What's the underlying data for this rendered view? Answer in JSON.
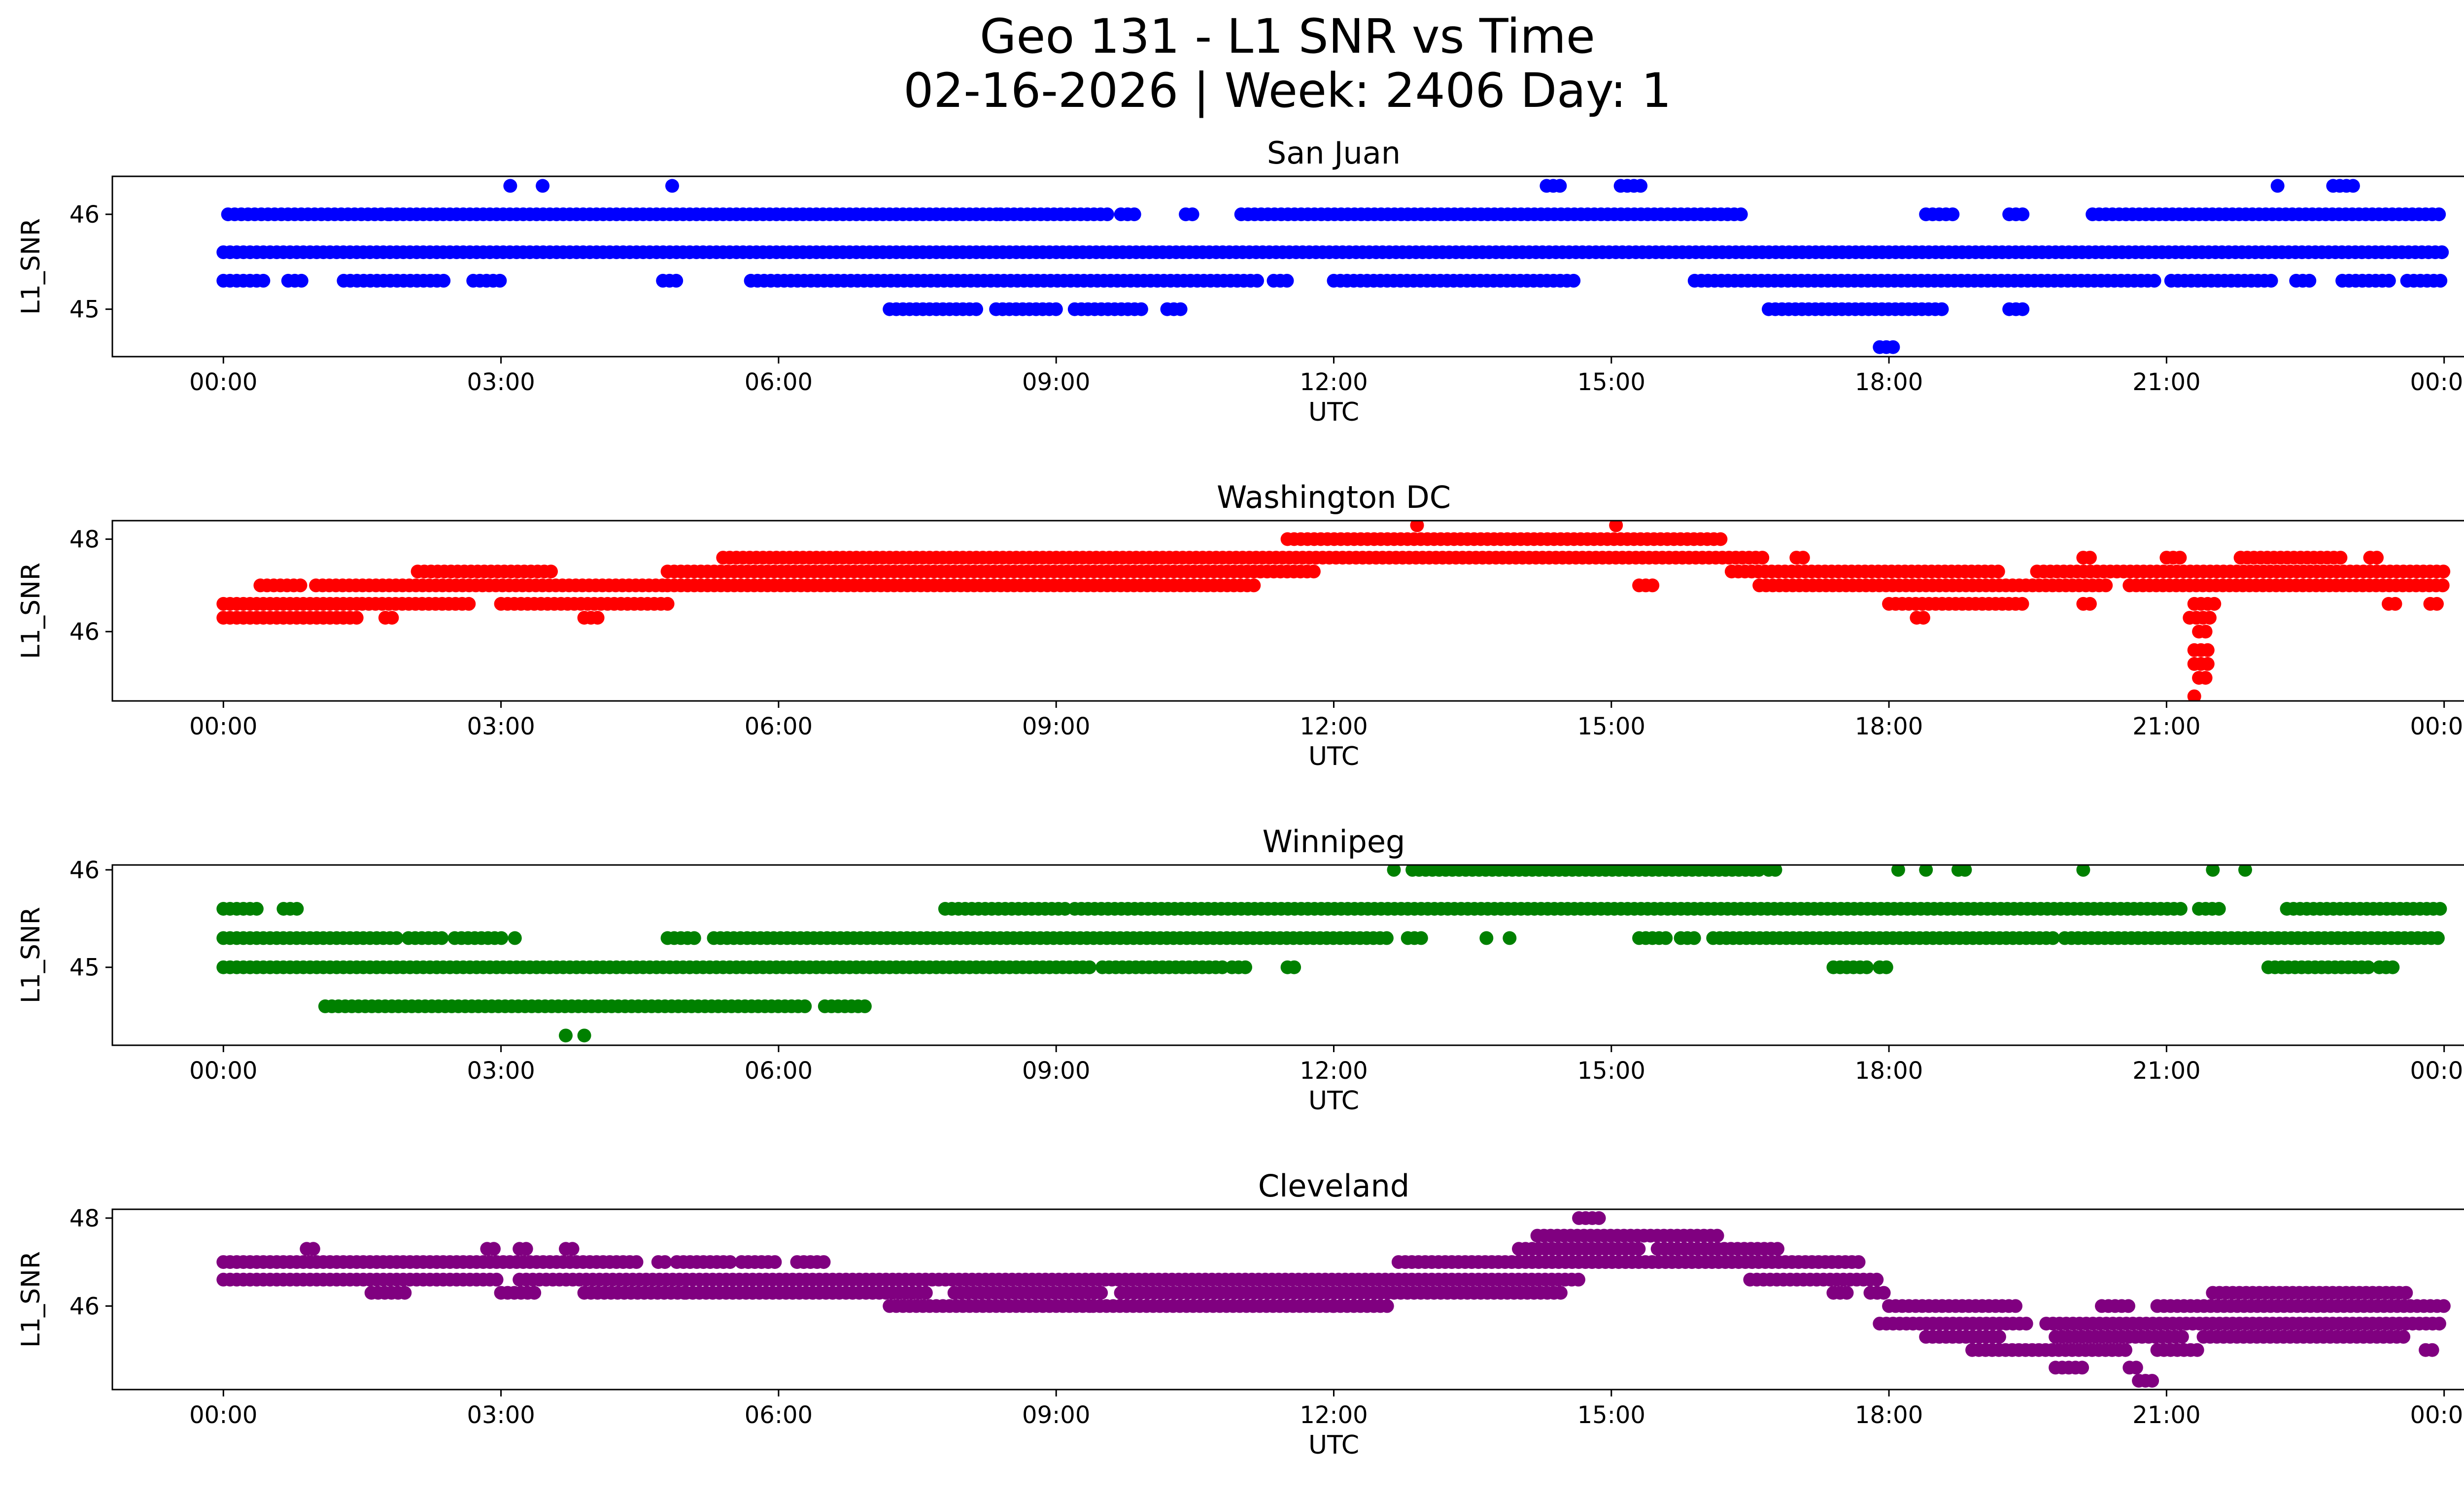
{
  "figure": {
    "title_line1": "Geo 131 - L1 SNR vs Time",
    "title_line2": "02-16-2026 | Week: 2406 Day: 1"
  },
  "chart_data": [
    {
      "type": "scatter",
      "title": "San Juan",
      "xlabel": "UTC",
      "ylabel": "L1_SNR",
      "color": "#0000ff",
      "x_ticks": [
        "00:00",
        "03:00",
        "06:00",
        "09:00",
        "12:00",
        "15:00",
        "18:00",
        "21:00",
        "00:00"
      ],
      "y_ticks": [
        45,
        46
      ],
      "xlim_hours": [
        -1.2,
        25.2
      ],
      "ylim": [
        44.5,
        46.4
      ],
      "levels": [
        {
          "y": 46.3,
          "runs": [
            [
              3.1,
              3.15
            ],
            [
              3.45,
              3.5
            ],
            [
              4.85,
              4.9
            ],
            [
              14.3,
              14.5
            ],
            [
              15.1,
              15.35
            ],
            [
              22.2,
              22.25
            ],
            [
              22.8,
              23.05
            ]
          ]
        },
        {
          "y": 46.0,
          "runs": [
            [
              0.05,
              1.8
            ],
            [
              1.8,
              8.4
            ],
            [
              8.4,
              9.6
            ],
            [
              9.7,
              9.85
            ],
            [
              10.4,
              10.5
            ],
            [
              11.0,
              16.4
            ],
            [
              18.4,
              18.75
            ],
            [
              19.3,
              19.5
            ],
            [
              20.2,
              24.0
            ]
          ]
        },
        {
          "y": 45.6,
          "runs": [
            [
              0.0,
              24.0
            ]
          ]
        },
        {
          "y": 45.3,
          "runs": [
            [
              0.0,
              0.45
            ],
            [
              0.7,
              0.9
            ],
            [
              1.3,
              2.4
            ],
            [
              2.7,
              3.05
            ],
            [
              4.75,
              4.95
            ],
            [
              5.7,
              11.2
            ],
            [
              11.35,
              11.55
            ],
            [
              12.0,
              14.6
            ],
            [
              15.9,
              20.9
            ],
            [
              21.05,
              22.2
            ],
            [
              22.4,
              22.6
            ],
            [
              22.9,
              23.45
            ],
            [
              23.6,
              24.0
            ]
          ]
        },
        {
          "y": 45.0,
          "runs": [
            [
              7.2,
              8.15
            ],
            [
              8.35,
              9.05
            ],
            [
              9.2,
              9.95
            ],
            [
              10.2,
              10.35
            ],
            [
              16.7,
              18.6
            ],
            [
              19.3,
              19.45
            ]
          ]
        },
        {
          "y": 44.6,
          "runs": [
            [
              17.9,
              18.1
            ]
          ]
        }
      ]
    },
    {
      "type": "scatter",
      "title": "Washington DC",
      "xlabel": "UTC",
      "ylabel": "L1_SNR",
      "color": "#ff0000",
      "x_ticks": [
        "00:00",
        "03:00",
        "06:00",
        "09:00",
        "12:00",
        "15:00",
        "18:00",
        "21:00",
        "00:00"
      ],
      "y_ticks": [
        46,
        48
      ],
      "xlim_hours": [
        -1.2,
        25.2
      ],
      "ylim": [
        44.5,
        48.4
      ],
      "levels": [
        {
          "y": 48.3,
          "runs": [
            [
              12.9,
              12.95
            ],
            [
              15.05,
              15.1
            ]
          ]
        },
        {
          "y": 48.0,
          "runs": [
            [
              11.5,
              16.2
            ]
          ]
        },
        {
          "y": 47.6,
          "runs": [
            [
              5.4,
              16.7
            ],
            [
              17.0,
              17.1
            ],
            [
              20.1,
              20.2
            ],
            [
              21.0,
              21.2
            ],
            [
              21.8,
              22.9
            ],
            [
              23.2,
              23.3
            ]
          ]
        },
        {
          "y": 47.3,
          "runs": [
            [
              2.1,
              3.6
            ],
            [
              4.8,
              11.8
            ],
            [
              16.3,
              19.2
            ],
            [
              19.6,
              24.0
            ]
          ]
        },
        {
          "y": 47.0,
          "runs": [
            [
              0.4,
              0.9
            ],
            [
              1.0,
              4.8
            ],
            [
              4.8,
              11.2
            ],
            [
              15.3,
              15.5
            ],
            [
              16.6,
              20.4
            ],
            [
              20.6,
              24.0
            ]
          ]
        },
        {
          "y": 46.6,
          "runs": [
            [
              0.0,
              1.5
            ],
            [
              1.5,
              2.7
            ],
            [
              3.0,
              4.8
            ],
            [
              18.0,
              19.5
            ],
            [
              20.1,
              20.2
            ],
            [
              21.3,
              21.55
            ],
            [
              23.4,
              23.5
            ],
            [
              23.85,
              23.95
            ]
          ]
        },
        {
          "y": 46.3,
          "runs": [
            [
              0.0,
              1.5
            ],
            [
              1.75,
              1.85
            ],
            [
              3.9,
              4.1
            ],
            [
              18.3,
              18.4
            ],
            [
              21.25,
              21.5
            ]
          ]
        },
        {
          "y": 46.0,
          "runs": [
            [
              21.35,
              21.45
            ]
          ]
        },
        {
          "y": 45.6,
          "runs": [
            [
              21.3,
              21.45
            ]
          ]
        },
        {
          "y": 45.3,
          "runs": [
            [
              21.3,
              21.45
            ]
          ]
        },
        {
          "y": 45.0,
          "runs": [
            [
              21.35,
              21.45
            ]
          ]
        },
        {
          "y": 44.6,
          "runs": [
            [
              21.3,
              21.35
            ]
          ]
        }
      ]
    },
    {
      "type": "scatter",
      "title": "Winnipeg",
      "xlabel": "UTC",
      "ylabel": "L1_SNR",
      "color": "#008000",
      "x_ticks": [
        "00:00",
        "03:00",
        "06:00",
        "09:00",
        "12:00",
        "15:00",
        "18:00",
        "21:00",
        "00:00"
      ],
      "y_ticks": [
        45,
        46
      ],
      "xlim_hours": [
        -1.2,
        25.2
      ],
      "ylim": [
        44.2,
        46.05
      ],
      "levels": [
        {
          "y": 46.0,
          "runs": [
            [
              12.65,
              12.7
            ],
            [
              12.85,
              16.6
            ],
            [
              16.7,
              16.8
            ],
            [
              18.1,
              18.15
            ],
            [
              18.4,
              18.45
            ],
            [
              18.75,
              18.85
            ],
            [
              20.1,
              20.15
            ],
            [
              21.5,
              21.55
            ],
            [
              21.85,
              21.9
            ]
          ]
        },
        {
          "y": 45.6,
          "runs": [
            [
              0.0,
              0.4
            ],
            [
              0.65,
              0.85
            ],
            [
              7.8,
              9.1
            ],
            [
              9.2,
              21.2
            ],
            [
              21.35,
              21.6
            ],
            [
              22.3,
              24.0
            ]
          ]
        },
        {
          "y": 45.3,
          "runs": [
            [
              0.0,
              1.9
            ],
            [
              2.0,
              2.4
            ],
            [
              2.5,
              3.05
            ],
            [
              3.15,
              3.2
            ],
            [
              4.8,
              5.1
            ],
            [
              5.3,
              12.6
            ],
            [
              12.8,
              13.0
            ],
            [
              13.65,
              13.7
            ],
            [
              13.9,
              13.95
            ],
            [
              15.3,
              15.6
            ],
            [
              15.75,
              15.95
            ],
            [
              16.1,
              19.8
            ],
            [
              19.9,
              24.0
            ]
          ]
        },
        {
          "y": 45.0,
          "runs": [
            [
              0.0,
              9.4
            ],
            [
              9.5,
              10.8
            ],
            [
              10.9,
              11.1
            ],
            [
              11.5,
              11.6
            ],
            [
              17.4,
              17.8
            ],
            [
              17.9,
              18.0
            ],
            [
              22.1,
              23.2
            ],
            [
              23.3,
              23.5
            ]
          ]
        },
        {
          "y": 44.6,
          "runs": [
            [
              1.1,
              6.3
            ],
            [
              6.5,
              7.0
            ]
          ]
        },
        {
          "y": 44.3,
          "runs": [
            [
              3.7,
              3.75
            ],
            [
              3.9,
              3.95
            ]
          ]
        }
      ]
    },
    {
      "type": "scatter",
      "title": "Cleveland",
      "xlabel": "UTC",
      "ylabel": "L1_SNR",
      "color": "#800080",
      "x_ticks": [
        "00:00",
        "03:00",
        "06:00",
        "09:00",
        "12:00",
        "15:00",
        "18:00",
        "21:00",
        "00:00"
      ],
      "y_ticks": [
        46,
        48
      ],
      "xlim_hours": [
        -1.2,
        25.2
      ],
      "ylim": [
        44.1,
        48.2
      ],
      "levels": [
        {
          "y": 48.0,
          "runs": [
            [
              14.65,
              14.9
            ]
          ]
        },
        {
          "y": 47.6,
          "runs": [
            [
              14.2,
              16.2
            ]
          ]
        },
        {
          "y": 47.3,
          "runs": [
            [
              0.9,
              1.0
            ],
            [
              2.85,
              2.95
            ],
            [
              3.2,
              3.3
            ],
            [
              3.7,
              3.8
            ],
            [
              14.0,
              15.3
            ],
            [
              15.5,
              16.8
            ]
          ]
        },
        {
          "y": 47.0,
          "runs": [
            [
              0.0,
              4.5
            ],
            [
              4.7,
              4.8
            ],
            [
              4.9,
              5.5
            ],
            [
              5.6,
              6.0
            ],
            [
              6.2,
              6.5
            ],
            [
              12.7,
              14.0
            ],
            [
              14.0,
              17.7
            ]
          ]
        },
        {
          "y": 46.6,
          "runs": [
            [
              0.0,
              3.0
            ],
            [
              3.2,
              7.3
            ],
            [
              7.3,
              14.7
            ],
            [
              16.5,
              17.9
            ]
          ]
        },
        {
          "y": 46.3,
          "runs": [
            [
              1.6,
              2.0
            ],
            [
              3.0,
              3.4
            ],
            [
              3.9,
              5.0
            ],
            [
              5.0,
              7.6
            ],
            [
              7.9,
              9.5
            ],
            [
              9.7,
              14.5
            ],
            [
              17.4,
              17.6
            ],
            [
              17.8,
              18.0
            ],
            [
              21.5,
              23.6
            ]
          ]
        },
        {
          "y": 46.0,
          "runs": [
            [
              7.2,
              9.4
            ],
            [
              9.4,
              12.0
            ],
            [
              12.0,
              12.6
            ],
            [
              18.0,
              19.4
            ],
            [
              20.3,
              20.6
            ],
            [
              20.9,
              24.0
            ]
          ]
        },
        {
          "y": 45.6,
          "runs": [
            [
              17.9,
              19.5
            ],
            [
              19.7,
              24.0
            ]
          ]
        },
        {
          "y": 45.3,
          "runs": [
            [
              18.4,
              19.2
            ],
            [
              19.8,
              21.2
            ],
            [
              21.4,
              23.6
            ]
          ]
        },
        {
          "y": 45.0,
          "runs": [
            [
              18.9,
              20.6
            ],
            [
              20.9,
              21.4
            ],
            [
              23.8,
              23.9
            ]
          ]
        },
        {
          "y": 44.6,
          "runs": [
            [
              19.8,
              20.1
            ],
            [
              20.6,
              20.7
            ]
          ]
        },
        {
          "y": 44.3,
          "runs": [
            [
              20.7,
              20.85
            ]
          ]
        }
      ]
    }
  ]
}
